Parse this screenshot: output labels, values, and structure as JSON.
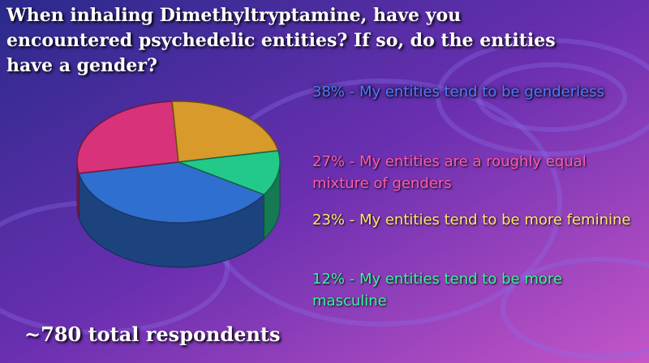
{
  "chart_data": {
    "type": "pie",
    "title": "When inhaling Dimethyltryptamine, have you encountered psychedelic entities? If so, do the entities have a gender?",
    "slices": [
      {
        "label": "38% - My entities tend to be genderless",
        "value": 38,
        "color": "#2f6fd0"
      },
      {
        "label": "27% - My entities are a roughly equal mixture of genders",
        "value": 27,
        "color": "#d8327a"
      },
      {
        "label": "23% - My entities tend to be more feminine",
        "value": 23,
        "color": "#d89a2a"
      },
      {
        "label": "12% - My entities tend to be more masculine",
        "value": 12,
        "color": "#23c98a"
      }
    ],
    "footer": "~780 total respondents"
  }
}
